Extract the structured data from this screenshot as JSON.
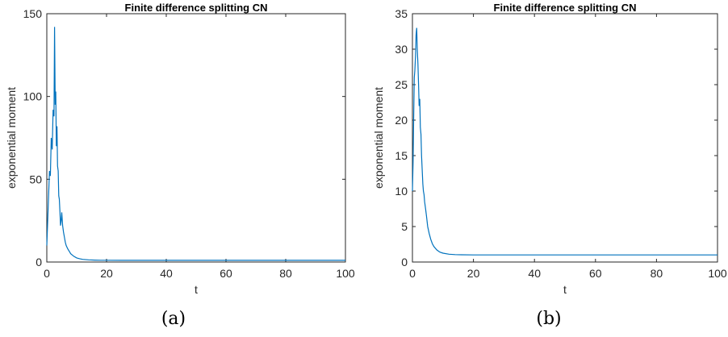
{
  "chart_data": [
    {
      "type": "line",
      "title": "Finite difference splitting CN",
      "xlabel": "t",
      "ylabel": "exponential moment",
      "caption": "(a)",
      "xlim": [
        0,
        100
      ],
      "ylim": [
        0,
        150
      ],
      "xticks": [
        0,
        20,
        40,
        60,
        80,
        100
      ],
      "yticks": [
        0,
        50,
        100,
        150
      ],
      "grid": false,
      "color": "#0072BD",
      "x": [
        0,
        0.3,
        0.6,
        0.9,
        1.2,
        1.5,
        1.8,
        2.1,
        2.4,
        2.6,
        2.8,
        3.0,
        3.2,
        3.4,
        3.6,
        3.8,
        4.0,
        4.2,
        4.4,
        4.6,
        4.8,
        5.0,
        5.3,
        5.6,
        5.9,
        6.2,
        6.5,
        7.0,
        7.5,
        8.0,
        9.0,
        10.0,
        11.0,
        12.0,
        14.0,
        16.0,
        18.0,
        20.0,
        25.0,
        30.0,
        40.0,
        60.0,
        80.0,
        100.0
      ],
      "y": [
        10,
        25,
        40,
        55,
        52,
        75,
        68,
        92,
        88,
        142,
        95,
        103,
        70,
        82,
        58,
        55,
        40,
        38,
        30,
        22,
        25,
        30,
        22,
        18,
        15,
        12,
        10,
        8,
        6.5,
        5,
        3.5,
        2.5,
        2,
        1.6,
        1.3,
        1.15,
        1.08,
        1.05,
        1.02,
        1.01,
        1.0,
        1.0,
        1.0,
        1.0
      ]
    },
    {
      "type": "line",
      "title": "Finite difference splitting CN",
      "xlabel": "t",
      "ylabel": "exponential moment",
      "caption": "(b)",
      "xlim": [
        0,
        100
      ],
      "ylim": [
        0,
        35
      ],
      "xticks": [
        0,
        20,
        40,
        60,
        80,
        100
      ],
      "yticks": [
        0,
        5,
        10,
        15,
        20,
        25,
        30,
        35
      ],
      "grid": false,
      "color": "#0072BD",
      "x": [
        0,
        0.2,
        0.4,
        0.6,
        0.8,
        1.0,
        1.2,
        1.4,
        1.6,
        1.8,
        2.0,
        2.2,
        2.4,
        2.6,
        2.8,
        3.0,
        3.2,
        3.4,
        3.6,
        3.8,
        4.0,
        4.3,
        4.6,
        5.0,
        5.5,
        6.0,
        6.5,
        7.0,
        8.0,
        9.0,
        10.0,
        12.0,
        14.0,
        16.0,
        20.0,
        25.0,
        30.0,
        40.0,
        60.0,
        80.0,
        100.0
      ],
      "y": [
        10,
        14,
        20,
        26,
        27,
        29,
        32,
        33,
        30,
        28,
        25,
        22,
        23,
        19,
        18,
        15,
        13,
        11,
        10,
        9.5,
        8.5,
        7.5,
        6.5,
        5,
        4,
        3.2,
        2.6,
        2.2,
        1.7,
        1.4,
        1.25,
        1.1,
        1.05,
        1.02,
        1.0,
        1.0,
        1.0,
        1.0,
        1.0,
        1.0,
        1.0
      ]
    }
  ]
}
